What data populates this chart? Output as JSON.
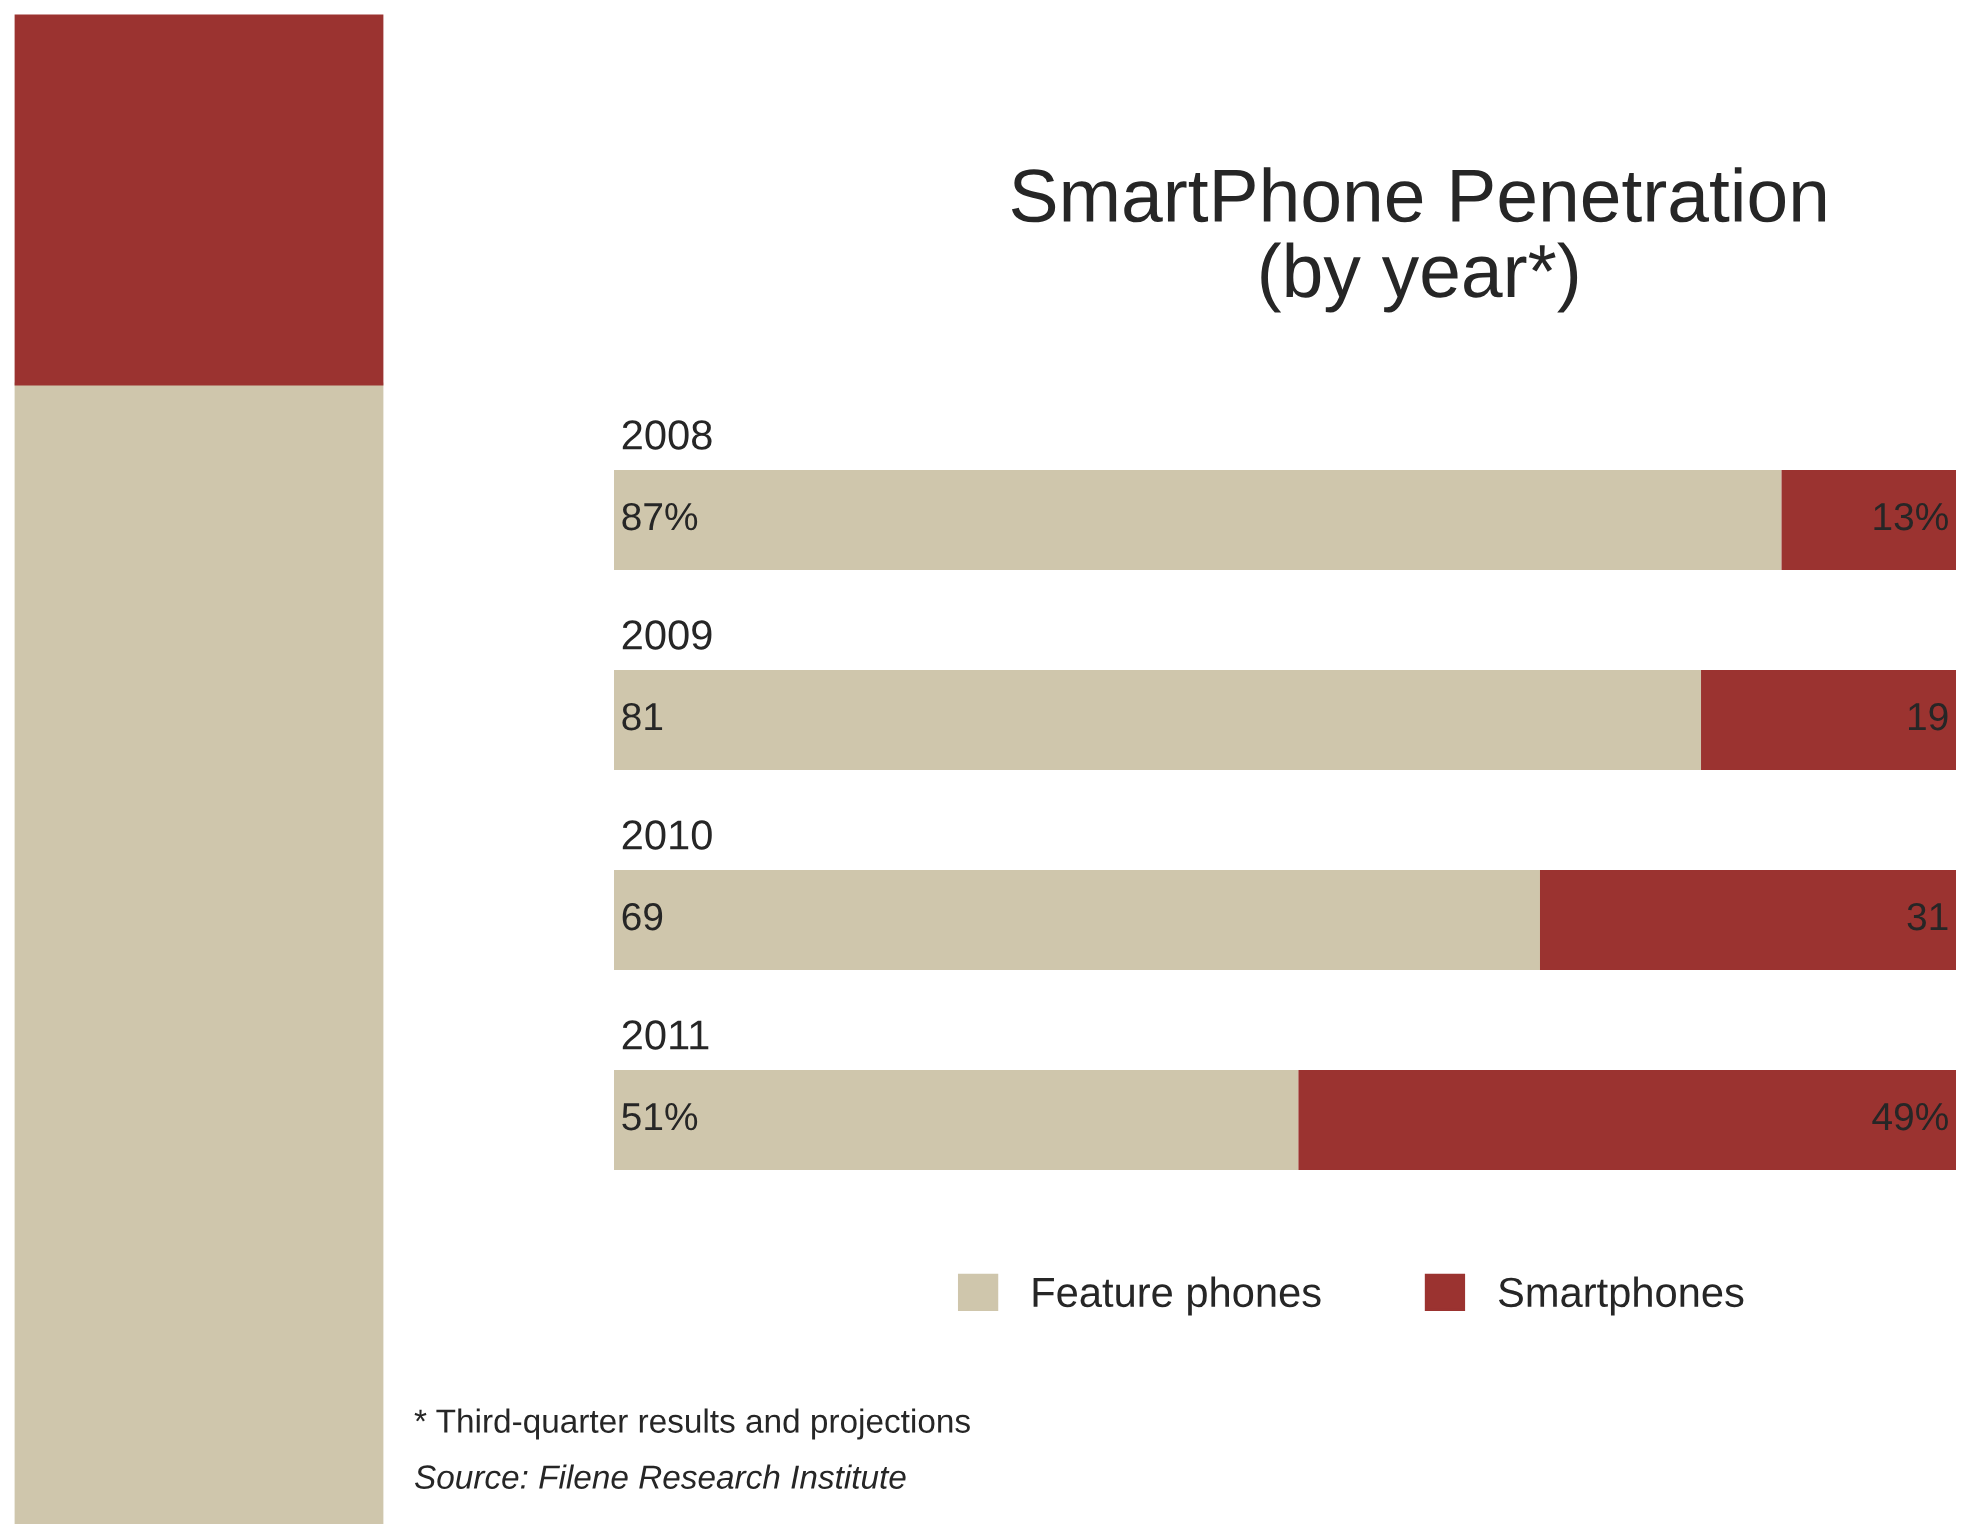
{
  "chart_data": {
    "type": "bar",
    "orientation": "horizontal",
    "stacked": true,
    "title": "SmartPhone Penetration\n(by year*)",
    "categories": [
      "2008",
      "2009",
      "2010",
      "2011"
    ],
    "series": [
      {
        "name": "Feature phones",
        "color": "#cfc6ac",
        "values": [
          87,
          81,
          69,
          51
        ],
        "value_labels": [
          "87%",
          "81",
          "69",
          "51%"
        ]
      },
      {
        "name": "Smartphones",
        "color": "#9b3330",
        "values": [
          13,
          19,
          31,
          49
        ],
        "value_labels": [
          "13%",
          "19",
          "31",
          "49%"
        ]
      }
    ],
    "legend": "bottom",
    "annotations": [
      "* Third-quarter results and projections",
      "Source: Filene Research Institute"
    ]
  }
}
